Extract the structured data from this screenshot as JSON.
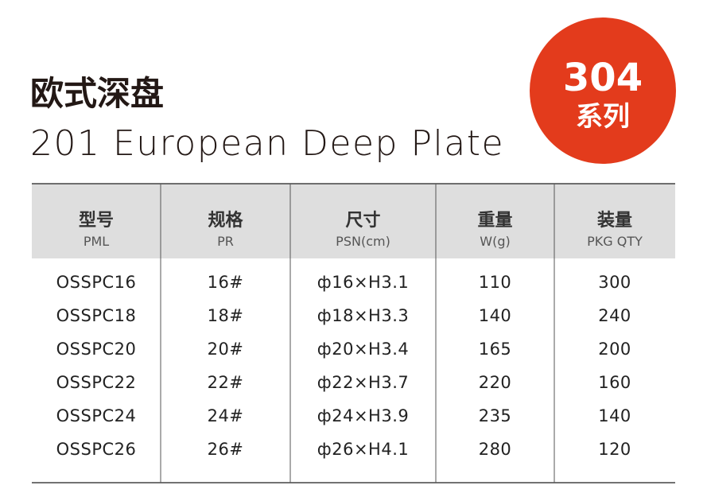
{
  "header": {
    "title_cn": "欧式深盘",
    "title_en": "201 European Deep Plate"
  },
  "badge": {
    "number": "304",
    "text": "系列"
  },
  "table": {
    "columns": [
      {
        "cn": "型号",
        "en": "PML"
      },
      {
        "cn": "规格",
        "en": "PR"
      },
      {
        "cn": "尺寸",
        "en": "PSN(cm)"
      },
      {
        "cn": "重量",
        "en": "W(g)"
      },
      {
        "cn": "装量",
        "en": "PKG QTY"
      }
    ],
    "rows": [
      [
        "OSSPC16",
        "16#",
        "ф16×H3.1",
        "110",
        "300"
      ],
      [
        "OSSPC18",
        "18#",
        "ф18×H3.3",
        "140",
        "240"
      ],
      [
        "OSSPC20",
        "20#",
        "ф20×H3.4",
        "165",
        "200"
      ],
      [
        "OSSPC22",
        "22#",
        "ф22×H3.7",
        "220",
        "160"
      ],
      [
        "OSSPC24",
        "24#",
        "ф24×H3.9",
        "235",
        "140"
      ],
      [
        "OSSPC26",
        "26#",
        "ф26×H4.1",
        "280",
        "120"
      ]
    ]
  }
}
